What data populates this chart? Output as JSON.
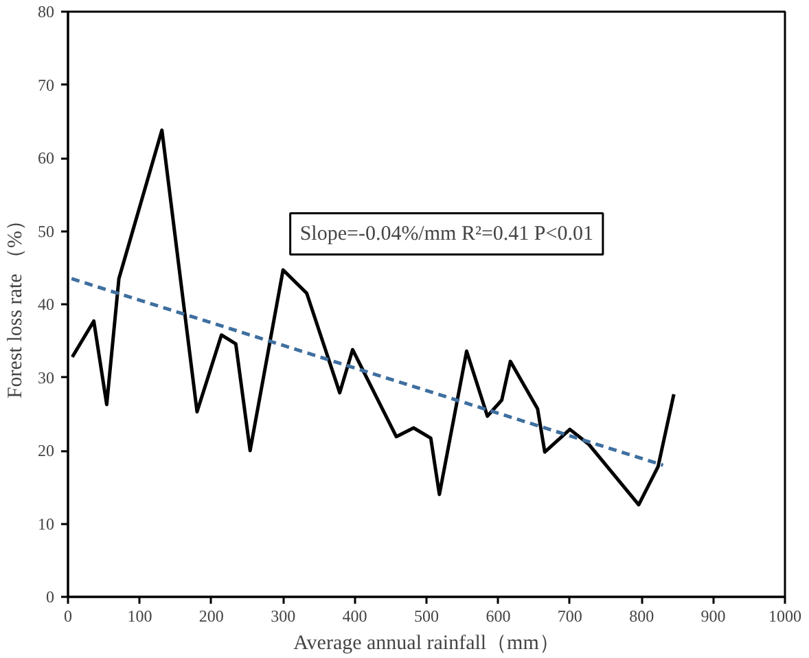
{
  "chart_data": {
    "type": "line",
    "xlabel": "Average annual rainfall（mm）",
    "ylabel": "Forest loss rate （%）",
    "xlim": [
      0,
      1000
    ],
    "ylim": [
      0,
      80
    ],
    "xticks": [
      0,
      100,
      200,
      300,
      400,
      500,
      600,
      700,
      800,
      900,
      1000
    ],
    "yticks": [
      0,
      10,
      20,
      30,
      40,
      50,
      60,
      70,
      80
    ],
    "grid": false,
    "marker": "none",
    "series": [
      {
        "color": "#000000",
        "line_style": "solid",
        "x": [
          6,
          36,
          54,
          71,
          131,
          180,
          214,
          234,
          254,
          300,
          333,
          379,
          397,
          458,
          482,
          506,
          518,
          556,
          585,
          605,
          617,
          655,
          665,
          700,
          726,
          796,
          823,
          845
        ],
        "values": [
          32.8,
          37.7,
          26.3,
          43.5,
          63.8,
          25.3,
          35.8,
          34.6,
          20,
          44.7,
          41.5,
          27.9,
          33.8,
          21.9,
          23.1,
          21.7,
          14,
          33.6,
          24.7,
          26.9,
          32.2,
          25.7,
          19.8,
          22.9,
          20.9,
          12.6,
          17.8,
          27.7
        ]
      },
      {
        "color": "#3f6f9f",
        "line_style": "dashed",
        "x": [
          5,
          830
        ],
        "values": [
          43.5,
          18
        ]
      }
    ],
    "annotations": [
      "Slope=-0.04%/mm R²=0.41 P<0.01"
    ]
  }
}
